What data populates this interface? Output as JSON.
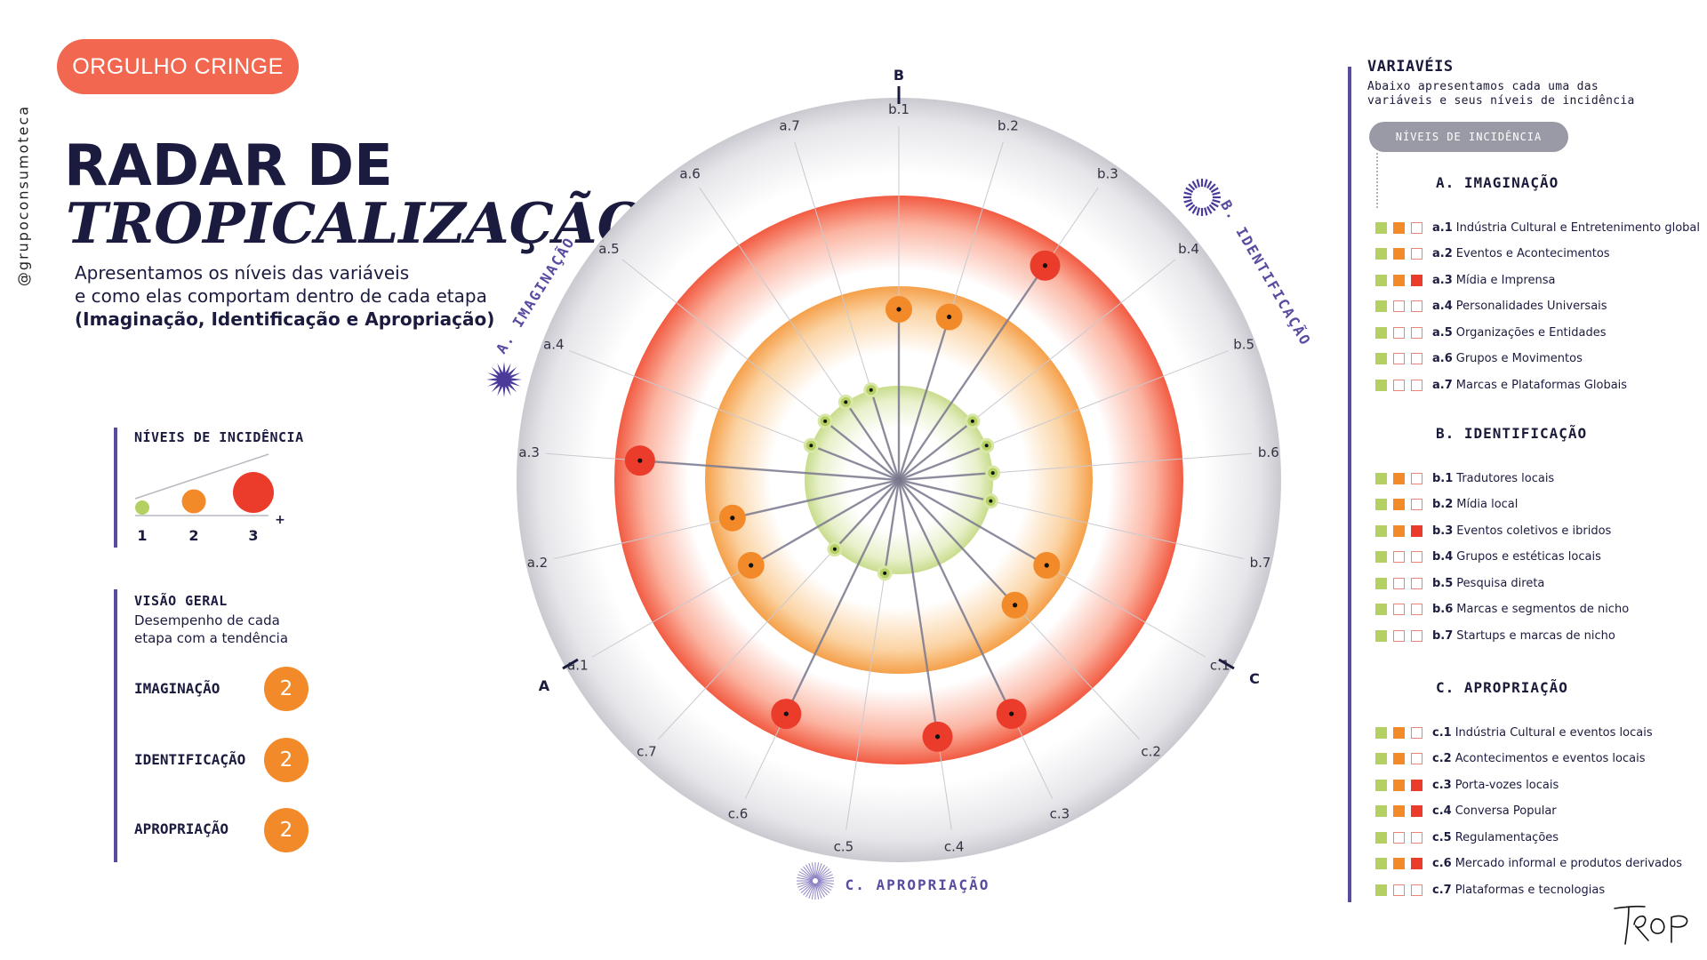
{
  "brand_badge": "ORGULHO CRINGE",
  "handle": "@grupoconsumoteca",
  "title_line1": "RADAR DE",
  "title_line2": "TROPICALIZAÇÃO",
  "intro": {
    "line1": "Apresentamos os níveis das variáveis",
    "line2": "e como elas comportam dentro de cada etapa",
    "line3": "(Imaginação, Identificação e Apropriação)"
  },
  "legend": {
    "title": "NÍVEIS DE INCIDÊNCIA",
    "levels": [
      "1",
      "2",
      "3"
    ],
    "plus": "+",
    "colors": [
      "#b4cf62",
      "#f38a2a",
      "#ea3b2b"
    ]
  },
  "overview": {
    "title": "VISÃO GERAL",
    "desc_line1": "Desempenho de cada",
    "desc_line2": "etapa com a tendência",
    "rows": [
      {
        "label": "IMAGINAÇÃO",
        "value": "2"
      },
      {
        "label": "IDENTIFICAÇÃO",
        "value": "2"
      },
      {
        "label": "APROPRIAÇÃO",
        "value": "2"
      }
    ]
  },
  "radar": {
    "axis_letters": [
      "A",
      "B",
      "C"
    ],
    "sections": {
      "a": "A. IMAGINAÇÃO",
      "b": "B. IDENTIFICAÇÃO",
      "c": "C. APROPRIAÇÃO"
    },
    "variables": [
      {
        "label": "a.1",
        "level": 2
      },
      {
        "label": "a.2",
        "level": 2
      },
      {
        "label": "a.3",
        "level": 3
      },
      {
        "label": "a.4",
        "level": 1
      },
      {
        "label": "a.5",
        "level": 1
      },
      {
        "label": "a.6",
        "level": 1
      },
      {
        "label": "a.7",
        "level": 1
      },
      {
        "label": "b.1",
        "level": 2
      },
      {
        "label": "b.2",
        "level": 2
      },
      {
        "label": "b.3",
        "level": 3
      },
      {
        "label": "b.4",
        "level": 1
      },
      {
        "label": "b.5",
        "level": 1
      },
      {
        "label": "b.6",
        "level": 1
      },
      {
        "label": "b.7",
        "level": 1
      },
      {
        "label": "c.1",
        "level": 2
      },
      {
        "label": "c.2",
        "level": 2
      },
      {
        "label": "c.3",
        "level": 3
      },
      {
        "label": "c.4",
        "level": 3
      },
      {
        "label": "c.5",
        "level": 1
      },
      {
        "label": "c.6",
        "level": 3
      },
      {
        "label": "c.7",
        "level": 1
      }
    ]
  },
  "right_panel": {
    "title": "VARIAVÉIS",
    "desc_line1": "Abaixo apresentamos cada uma das",
    "desc_line2": "variáveis e seus níveis de incidência",
    "pill": "NÍVEIS DE INCIDÊNCIA",
    "sections": [
      {
        "heading": "A. IMAGINAÇÃO",
        "items": [
          {
            "code": "a.1",
            "name": "Indústria Cultural e Entretenimento global",
            "level": 2
          },
          {
            "code": "a.2",
            "name": "Eventos e Acontecimentos",
            "level": 2
          },
          {
            "code": "a.3",
            "name": "Mídia e Imprensa",
            "level": 3
          },
          {
            "code": "a.4",
            "name": "Personalidades Universais",
            "level": 1
          },
          {
            "code": "a.5",
            "name": "Organizações e Entidades",
            "level": 1
          },
          {
            "code": "a.6",
            "name": "Grupos e Movimentos",
            "level": 1
          },
          {
            "code": "a.7",
            "name": "Marcas e Plataformas Globais",
            "level": 1
          }
        ]
      },
      {
        "heading": "B. IDENTIFICAÇÃO",
        "items": [
          {
            "code": "b.1",
            "name": "Tradutores locais",
            "level": 2
          },
          {
            "code": "b.2",
            "name": "Mídia local",
            "level": 2
          },
          {
            "code": "b.3",
            "name": "Eventos coletivos e ibridos",
            "level": 3
          },
          {
            "code": "b.4",
            "name": "Grupos e estéticas locais",
            "level": 1
          },
          {
            "code": "b.5",
            "name": "Pesquisa direta",
            "level": 1
          },
          {
            "code": "b.6",
            "name": "Marcas e segmentos de nicho",
            "level": 1
          },
          {
            "code": "b.7",
            "name": "Startups e marcas de nicho",
            "level": 1
          }
        ]
      },
      {
        "heading": "C. APROPRIAÇÃO",
        "items": [
          {
            "code": "c.1",
            "name": "Indústria Cultural e eventos locais",
            "level": 2
          },
          {
            "code": "c.2",
            "name": "Acontecimentos e eventos locais",
            "level": 2
          },
          {
            "code": "c.3",
            "name": "Porta-vozes locais",
            "level": 3
          },
          {
            "code": "c.4",
            "name": "Conversa Popular",
            "level": 3
          },
          {
            "code": "c.5",
            "name": "Regulamentações",
            "level": 1
          },
          {
            "code": "c.6",
            "name": "Mercado informal e produtos derivados",
            "level": 3
          },
          {
            "code": "c.7",
            "name": "Plataformas e tecnologias",
            "level": 1
          }
        ]
      }
    ]
  },
  "logo_text": "TROP",
  "colors": {
    "accent_purple": "#5a4aa0",
    "navy": "#1b1b3f",
    "level1": "#b4cf62",
    "level2": "#f38a2a",
    "level3": "#ea3b2b",
    "badge": "#f2674f"
  }
}
